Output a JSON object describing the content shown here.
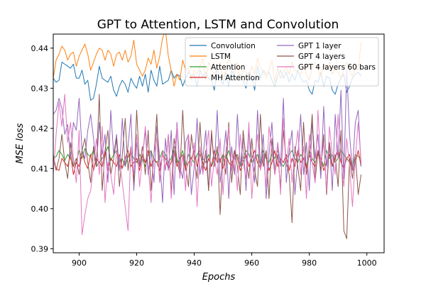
{
  "chart_data": {
    "type": "line",
    "title": "GPT to Attention, LSTM and Convolution",
    "xlabel": "Epochs",
    "ylabel": "MSE loss",
    "xlim": [
      891,
      1006
    ],
    "ylim": [
      0.389,
      0.4435
    ],
    "xticks": [
      900,
      920,
      940,
      960,
      980,
      1000
    ],
    "yticks": [
      0.39,
      0.4,
      0.41,
      0.42,
      0.43,
      0.44
    ],
    "ytick_labels": [
      "0.39",
      "0.40",
      "0.41",
      "0.42",
      "0.43",
      "0.44"
    ],
    "x_start": 891,
    "x_end": 998,
    "legend": {
      "placement": "top-right",
      "columns": 2
    },
    "series": [
      {
        "name": "Convolution",
        "color": "#1f77b4",
        "values": [
          0.4325,
          0.4315,
          0.432,
          0.4365,
          0.436,
          0.4355,
          0.435,
          0.436,
          0.4325,
          0.4325,
          0.4345,
          0.431,
          0.432,
          0.427,
          0.4275,
          0.431,
          0.4355,
          0.4325,
          0.432,
          0.4315,
          0.433,
          0.4295,
          0.428,
          0.4305,
          0.432,
          0.431,
          0.429,
          0.4325,
          0.431,
          0.43,
          0.433,
          0.4305,
          0.4335,
          0.429,
          0.4345,
          0.432,
          0.4305,
          0.4355,
          0.431,
          0.4315,
          0.432,
          0.4345,
          0.4325,
          0.4335,
          0.433,
          0.4305,
          0.4325,
          0.434,
          0.433,
          0.4335,
          0.4305,
          0.4345,
          0.433,
          0.434,
          0.4325,
          0.432,
          0.4295,
          0.4355,
          0.432,
          0.431,
          0.434,
          0.4305,
          0.4345,
          0.4325,
          0.433,
          0.4335,
          0.432,
          0.43,
          0.434,
          0.433,
          0.4295,
          0.4355,
          0.4325,
          0.4345,
          0.4335,
          0.434,
          0.432,
          0.4305,
          0.433,
          0.4345,
          0.4325,
          0.434,
          0.4315,
          0.4335,
          0.432,
          0.4345,
          0.4325,
          0.4315,
          0.432,
          0.4295,
          0.4285,
          0.432,
          0.4315,
          0.434,
          0.4305,
          0.433,
          0.4325,
          0.4295,
          0.4285,
          0.431,
          0.4325,
          0.4335,
          0.429,
          0.4305,
          0.4325,
          0.4335,
          0.434,
          0.433
        ]
      },
      {
        "name": "LSTM",
        "color": "#ff7f0e",
        "values": [
          0.4325,
          0.437,
          0.4385,
          0.4405,
          0.4395,
          0.437,
          0.4385,
          0.439,
          0.4355,
          0.438,
          0.4395,
          0.441,
          0.4385,
          0.4345,
          0.4365,
          0.4385,
          0.44,
          0.4395,
          0.437,
          0.4395,
          0.4385,
          0.4355,
          0.4385,
          0.439,
          0.437,
          0.4395,
          0.4365,
          0.438,
          0.442,
          0.436,
          0.4345,
          0.433,
          0.4345,
          0.4375,
          0.436,
          0.4395,
          0.435,
          0.438,
          0.4425,
          0.4445,
          0.438,
          0.4345,
          0.4305,
          0.4335,
          0.432,
          0.437,
          0.4345,
          0.435,
          0.432,
          0.4345,
          0.4335,
          0.4355,
          0.4375,
          0.432,
          0.4365,
          0.4345,
          0.4335,
          0.435,
          0.4365,
          0.4325,
          0.4345,
          0.4375,
          0.4355,
          0.4335,
          0.4365,
          0.432,
          0.4345,
          0.434,
          0.4325,
          0.4355,
          0.4335,
          0.4375,
          0.435,
          0.434,
          0.4325,
          0.4345,
          0.437,
          0.4315,
          0.435,
          0.4325,
          0.434,
          0.4355,
          0.4335,
          0.4365,
          0.4345,
          0.434,
          0.4335,
          0.4355,
          0.4335,
          0.432,
          0.435,
          0.4365,
          0.4345,
          0.433,
          0.436,
          0.4345,
          0.4365,
          0.4335,
          0.435,
          0.434,
          0.4325,
          0.4345,
          0.4365,
          0.4345,
          0.433,
          0.435,
          0.4345,
          0.4415
        ]
      },
      {
        "name": "Attention",
        "color": "#2ca02c",
        "values": [
          0.4125,
          0.413,
          0.4145,
          0.4135,
          0.412,
          0.4135,
          0.4125,
          0.4105,
          0.4115,
          0.4145,
          0.4125,
          0.415,
          0.4135,
          0.413,
          0.4145,
          0.4105,
          0.4115,
          0.4125,
          0.4135,
          0.4155,
          0.412,
          0.4135,
          0.4145,
          0.4115,
          0.4125,
          0.4105,
          0.413,
          0.414,
          0.4125,
          0.4115,
          0.4135,
          0.4125,
          0.4105,
          0.4135,
          0.4145,
          0.412,
          0.4115,
          0.4125,
          0.4145,
          0.4135,
          0.4115,
          0.4125,
          0.4155,
          0.4115,
          0.4125,
          0.4145,
          0.4105,
          0.4135,
          0.4125,
          0.4115,
          0.4135,
          0.4145,
          0.4125,
          0.4115,
          0.4135,
          0.4105,
          0.4125,
          0.4145,
          0.4115,
          0.4135,
          0.4125,
          0.4145,
          0.4115,
          0.4125,
          0.4135,
          0.4105,
          0.4125,
          0.4145,
          0.4135,
          0.4115,
          0.4125,
          0.4135,
          0.4105,
          0.4145,
          0.4125,
          0.4115,
          0.4135,
          0.4125,
          0.4145,
          0.4115,
          0.4105,
          0.4125,
          0.4135,
          0.4145,
          0.4125,
          0.4115,
          0.4135,
          0.4125,
          0.4105,
          0.4145,
          0.4125,
          0.4115,
          0.4135,
          0.4125,
          0.4105,
          0.4145,
          0.4125,
          0.4135,
          0.4115,
          0.4125,
          0.4145,
          0.4135,
          0.4125,
          0.4115,
          0.4105,
          0.4135,
          0.413,
          0.4125
        ]
      },
      {
        "name": "MH Attention",
        "color": "#d62728",
        "values": [
          0.4125,
          0.41,
          0.4095,
          0.4125,
          0.4115,
          0.4105,
          0.4135,
          0.4085,
          0.4115,
          0.4105,
          0.4145,
          0.4115,
          0.41,
          0.4135,
          0.4095,
          0.4125,
          0.4115,
          0.4105,
          0.4145,
          0.4095,
          0.4125,
          0.4115,
          0.4105,
          0.4135,
          0.41,
          0.4125,
          0.4145,
          0.4105,
          0.4115,
          0.4125,
          0.4095,
          0.4135,
          0.4115,
          0.4145,
          0.4105,
          0.4125,
          0.4115,
          0.4095,
          0.4135,
          0.4125,
          0.41,
          0.4115,
          0.4145,
          0.4105,
          0.4125,
          0.4135,
          0.4095,
          0.4115,
          0.4125,
          0.4145,
          0.4105,
          0.4135,
          0.4115,
          0.4095,
          0.4125,
          0.4105,
          0.4145,
          0.4115,
          0.4125,
          0.41,
          0.4135,
          0.4115,
          0.4105,
          0.4145,
          0.4125,
          0.4095,
          0.4115,
          0.4135,
          0.4105,
          0.4125,
          0.4145,
          0.4115,
          0.41,
          0.4125,
          0.4135,
          0.4095,
          0.4115,
          0.4145,
          0.4105,
          0.4125,
          0.4115,
          0.4135,
          0.4095,
          0.4125,
          0.4105,
          0.4145,
          0.4115,
          0.4125,
          0.41,
          0.4135,
          0.4115,
          0.4105,
          0.4145,
          0.4125,
          0.4095,
          0.4115,
          0.4135,
          0.4105,
          0.4125,
          0.4145,
          0.4115,
          0.41,
          0.4125,
          0.4135,
          0.4095,
          0.4115,
          0.4145,
          0.4105
        ]
      },
      {
        "name": "GPT 1 layer",
        "color": "#9467bd",
        "values": [
          0.4235,
          0.4245,
          0.4275,
          0.425,
          0.4185,
          0.421,
          0.4125,
          0.4215,
          0.4195,
          0.4275,
          0.4145,
          0.4125,
          0.4195,
          0.4235,
          0.4175,
          0.4105,
          0.4215,
          0.4135,
          0.4185,
          0.4065,
          0.4245,
          0.4135,
          0.4185,
          0.4095,
          0.4225,
          0.4105,
          0.4155,
          0.4235,
          0.4045,
          0.4165,
          0.4105,
          0.4125,
          0.4195,
          0.4085,
          0.4145,
          0.4065,
          0.4205,
          0.4125,
          0.4015,
          0.4175,
          0.4095,
          0.4195,
          0.4035,
          0.4215,
          0.4105,
          0.4075,
          0.4165,
          0.4185,
          0.4035,
          0.4105,
          0.4225,
          0.4085,
          0.4125,
          0.4195,
          0.4045,
          0.4185,
          0.4105,
          0.4245,
          0.4065,
          0.4125,
          0.4195,
          0.4025,
          0.4155,
          0.4085,
          0.4235,
          0.4105,
          0.4175,
          0.4045,
          0.4195,
          0.4125,
          0.4065,
          0.4245,
          0.4105,
          0.4185,
          0.4025,
          0.4135,
          0.4215,
          0.4085,
          0.4165,
          0.4105,
          0.4275,
          0.4065,
          0.4145,
          0.4195,
          0.4035,
          0.4125,
          0.4235,
          0.4085,
          0.4165,
          0.4045,
          0.4215,
          0.4125,
          0.4185,
          0.4075,
          0.4255,
          0.4105,
          0.4165,
          0.4045,
          0.4235,
          0.4125,
          0.4295,
          0.4075,
          0.4345,
          0.4185,
          0.4095,
          0.4215,
          0.4245,
          0.4105
        ]
      },
      {
        "name": "GPT 4 layers",
        "color": "#8c564b",
        "values": [
          0.4135,
          0.4095,
          0.4125,
          0.4185,
          0.4115,
          0.4075,
          0.4165,
          0.4105,
          0.4125,
          0.4085,
          0.4145,
          0.4175,
          0.4115,
          0.4065,
          0.4155,
          0.4105,
          0.4285,
          0.4045,
          0.4145,
          0.4195,
          0.4085,
          0.4125,
          0.4175,
          0.4055,
          0.4135,
          0.4225,
          0.4095,
          0.4155,
          0.4065,
          0.4245,
          0.4105,
          0.4155,
          0.4085,
          0.4195,
          0.4045,
          0.4135,
          0.4235,
          0.4065,
          0.4145,
          0.4095,
          0.4185,
          0.4035,
          0.4175,
          0.4125,
          0.4085,
          0.4245,
          0.4105,
          0.4055,
          0.4185,
          0.4125,
          0.4075,
          0.4215,
          0.4095,
          0.4145,
          0.4045,
          0.4195,
          0.4105,
          0.4155,
          0.3985,
          0.4135,
          0.4085,
          0.4215,
          0.4065,
          0.4145,
          0.4105,
          0.4035,
          0.4195,
          0.4125,
          0.4075,
          0.4175,
          0.4095,
          0.4055,
          0.4235,
          0.4105,
          0.4145,
          0.4025,
          0.4175,
          0.4085,
          0.4135,
          0.4055,
          0.4195,
          0.4115,
          0.4085,
          0.3965,
          0.4155,
          0.4105,
          0.4045,
          0.4215,
          0.4085,
          0.4135,
          0.4235,
          0.4065,
          0.4145,
          0.4095,
          0.4185,
          0.4035,
          0.4165,
          0.4105,
          0.4135,
          0.4055,
          0.4195,
          0.3945,
          0.3925,
          0.4125,
          0.4075,
          0.4135,
          0.4035,
          0.4085
        ]
      },
      {
        "name": "GPT 4 layers 60 bars",
        "color": "#e377c2",
        "values": [
          0.4085,
          0.4185,
          0.4265,
          0.4205,
          0.4285,
          0.4165,
          0.4215,
          0.4125,
          0.4065,
          0.4195,
          0.3935,
          0.3985,
          0.4025,
          0.4045,
          0.4105,
          0.4175,
          0.4085,
          0.4205,
          0.4015,
          0.4115,
          0.4085,
          0.4035,
          0.4145,
          0.4125,
          0.4065,
          0.4005,
          0.3945,
          0.4155,
          0.4085,
          0.4185,
          0.4055,
          0.4125,
          0.4205,
          0.4105,
          0.4015,
          0.4135,
          0.4175,
          0.4065,
          0.4145,
          0.4095,
          0.4185,
          0.4025,
          0.4135,
          0.4205,
          0.4075,
          0.4135,
          0.4045,
          0.4185,
          0.4105,
          0.4165,
          0.4005,
          0.4155,
          0.4085,
          0.4135,
          0.4195,
          0.4055,
          0.4125,
          0.4085,
          0.4175,
          0.4035,
          0.4145,
          0.4205,
          0.4095,
          0.4135,
          0.4045,
          0.4185,
          0.4115,
          0.4075,
          0.4215,
          0.4025,
          0.4125,
          0.4185,
          0.4095,
          0.4135,
          0.4055,
          0.4205,
          0.4145,
          0.4085,
          0.4165,
          0.4035,
          0.4225,
          0.4105,
          0.4175,
          0.4065,
          0.4135,
          0.4195,
          0.4085,
          0.4155,
          0.4025,
          0.4185,
          0.4115,
          0.4065,
          0.4245,
          0.4105,
          0.4165,
          0.4045,
          0.4205,
          0.4135,
          0.4085,
          0.4235,
          0.4125,
          0.4055,
          0.4175,
          0.4105,
          0.4005,
          0.4125,
          0.4215,
          0.4115
        ]
      }
    ]
  }
}
